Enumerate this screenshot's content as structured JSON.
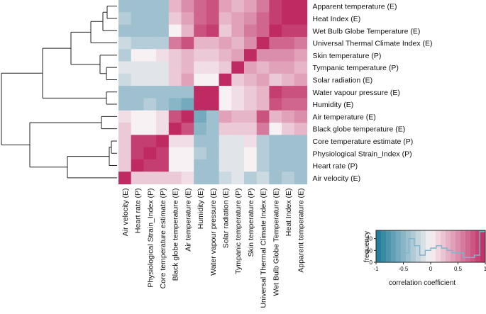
{
  "chart_data": {
    "type": "heatmap",
    "title": "",
    "row_labels": [
      "Apparent temperature (E)",
      "Heat Index (E)",
      "Wet Bulb Globe Temperature (E)",
      "Universal Thermal Climate Index (E)",
      "Skin temperature (P)",
      "Tympanic temperature (P)",
      "Solar radiation (E)",
      "Water vapour pressure (E)",
      "Humidity (E)",
      "Air temperature (E)",
      "Black globe temperature (E)",
      "Core temperature estimate (P)",
      "Physiological Strain_Index (P)",
      "Heart rate (P)",
      "Air velocity (E)"
    ],
    "column_labels": [
      "Air velocity (E)",
      "Heart rate (P)",
      "Physiological Strain_Index (P)",
      "Core temperature estimate (P)",
      "Black globe temperature (E)",
      "Air temperature (E)",
      "Humidity (E)",
      "Water vapour pressure (E)",
      "Solar radiation (E)",
      "Tympanic temperature (P)",
      "Skin temperature (P)",
      "Universal Thermal Climate Index (E)",
      "Wet Bulb Globe Temperature (E)",
      "Heat Index (E)",
      "Apparent temperature (E)"
    ],
    "values": [
      [
        -0.4,
        -0.4,
        -0.4,
        -0.4,
        0.3,
        0.5,
        0.7,
        0.8,
        0.4,
        0.3,
        0.4,
        0.6,
        0.9,
        1.0,
        1.0
      ],
      [
        -0.3,
        -0.4,
        -0.4,
        -0.4,
        0.2,
        0.4,
        0.7,
        0.8,
        0.3,
        0.4,
        0.5,
        0.7,
        0.9,
        1.0,
        1.0
      ],
      [
        -0.4,
        -0.4,
        -0.4,
        -0.4,
        0.0,
        0.3,
        0.8,
        0.9,
        0.2,
        0.4,
        0.6,
        0.7,
        1.0,
        0.9,
        0.9
      ],
      [
        -0.2,
        -0.3,
        -0.3,
        -0.3,
        0.6,
        0.8,
        0.3,
        0.3,
        0.4,
        0.3,
        0.5,
        1.0,
        0.7,
        0.7,
        0.6
      ],
      [
        -0.3,
        0.0,
        0.0,
        0.1,
        0.2,
        0.3,
        0.2,
        0.2,
        0.3,
        0.4,
        1.0,
        0.5,
        0.5,
        0.5,
        0.4
      ],
      [
        -0.1,
        -0.1,
        -0.1,
        -0.1,
        0.2,
        0.3,
        0.1,
        0.1,
        0.2,
        1.0,
        0.4,
        0.3,
        0.4,
        0.4,
        0.3
      ],
      [
        -0.2,
        -0.1,
        -0.1,
        -0.1,
        0.2,
        0.4,
        0.0,
        0.0,
        1.0,
        0.2,
        0.3,
        0.4,
        0.2,
        0.3,
        0.4
      ],
      [
        -0.4,
        -0.4,
        -0.4,
        -0.4,
        -0.4,
        -0.4,
        1.0,
        1.0,
        0.0,
        0.1,
        0.2,
        0.3,
        0.9,
        0.8,
        0.8
      ],
      [
        -0.4,
        -0.4,
        -0.3,
        -0.4,
        -0.5,
        -0.6,
        1.0,
        1.0,
        0.0,
        0.1,
        0.2,
        0.3,
        0.8,
        0.7,
        0.7
      ],
      [
        0.1,
        0.0,
        0.0,
        0.1,
        0.8,
        1.0,
        -0.6,
        -0.4,
        0.4,
        0.3,
        0.3,
        0.8,
        0.3,
        0.4,
        0.5
      ],
      [
        0.2,
        0.0,
        0.0,
        0.1,
        1.0,
        0.8,
        -0.5,
        -0.4,
        0.2,
        0.2,
        0.2,
        0.6,
        0.0,
        0.2,
        0.3
      ],
      [
        0.2,
        0.9,
        0.9,
        1.0,
        0.1,
        0.1,
        -0.4,
        -0.4,
        -0.1,
        -0.1,
        0.1,
        -0.3,
        -0.4,
        -0.4,
        -0.4
      ],
      [
        0.2,
        0.9,
        1.0,
        0.9,
        0.0,
        0.0,
        -0.3,
        -0.4,
        -0.1,
        -0.1,
        0.0,
        -0.3,
        -0.4,
        -0.4,
        -0.4
      ],
      [
        0.2,
        1.0,
        0.9,
        0.9,
        0.0,
        0.0,
        -0.4,
        -0.4,
        -0.1,
        -0.1,
        0.0,
        -0.3,
        -0.4,
        -0.4,
        -0.4
      ],
      [
        1.0,
        0.2,
        0.2,
        0.2,
        0.2,
        0.1,
        -0.4,
        -0.4,
        -0.2,
        -0.1,
        -0.3,
        -0.2,
        -0.4,
        -0.3,
        -0.4
      ]
    ],
    "color_range": [
      -1,
      1
    ],
    "colorscale": {
      "low": "#1b7a99",
      "mid": "#f7f1f3",
      "high": "#bf2a62"
    },
    "legend": {
      "ylabel": "frequency",
      "xlabel": "correlation coefficient",
      "xticks": [
        "-1",
        "-0.5",
        "0",
        "0.5",
        "1"
      ],
      "yticks": [
        "0",
        "10",
        "20"
      ],
      "histogram_line": [
        [
          -1.0,
          0
        ],
        [
          -0.55,
          0
        ],
        [
          -0.5,
          8
        ],
        [
          -0.4,
          8
        ],
        [
          -0.4,
          20
        ],
        [
          -0.3,
          20
        ],
        [
          -0.3,
          14
        ],
        [
          -0.2,
          14
        ],
        [
          -0.2,
          6
        ],
        [
          -0.1,
          6
        ],
        [
          -0.1,
          10
        ],
        [
          0.0,
          10
        ],
        [
          0.0,
          12
        ],
        [
          0.1,
          12
        ],
        [
          0.1,
          14
        ],
        [
          0.2,
          14
        ],
        [
          0.2,
          12
        ],
        [
          0.3,
          12
        ],
        [
          0.3,
          10
        ],
        [
          0.4,
          10
        ],
        [
          0.4,
          8
        ],
        [
          0.6,
          8
        ],
        [
          0.6,
          4
        ],
        [
          0.8,
          4
        ],
        [
          0.8,
          6
        ],
        [
          0.9,
          6
        ],
        [
          0.9,
          26
        ],
        [
          1.0,
          26
        ]
      ],
      "histogram_color": "#7fb4cc",
      "y_max": 27
    },
    "dendrogram": "hierarchical clustering of rows"
  }
}
